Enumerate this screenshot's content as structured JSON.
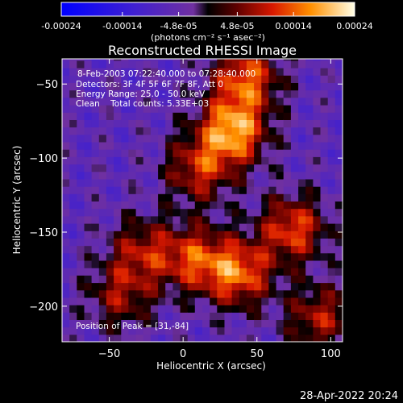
{
  "colorbar": {
    "tick_labels": [
      "-0.00024",
      "-0.00014",
      "-4.8e-05",
      "4.8e-05",
      "0.00014",
      "0.00024"
    ],
    "tick_values": [
      -0.00024,
      -0.00014,
      -4.8e-05,
      4.8e-05,
      0.00014,
      0.00024
    ],
    "range": [
      -0.00024,
      0.00024
    ],
    "units": "(photons cm⁻² s⁻¹ asec⁻²)"
  },
  "chart_data": {
    "type": "heatmap",
    "title": "Reconstructed RHESSI Image",
    "xlabel": "Heliocentric X (arcsec)",
    "ylabel": "Heliocentric Y (arcsec)",
    "xlim": [
      -82,
      108
    ],
    "ylim": [
      -224,
      -33
    ],
    "x_ticks": [
      -50,
      0,
      50,
      100
    ],
    "y_ticks": [
      -50,
      -100,
      -150,
      -200
    ],
    "x_tick_labels": [
      "−50",
      "0",
      "50",
      "100"
    ],
    "y_tick_labels": [
      "−50",
      "−100",
      "−150",
      "−200"
    ],
    "grid": false,
    "annotations": {
      "date": "8-Feb-2003 07:22:40.000 to 07:28:40.000",
      "detectors": "Detectors: 3F 4F 5F 6F 7F 8F, Att 0",
      "energy": "Energy Range: 25.0 - 50.0 keV",
      "clean": "Clean    Total counts: 5.33E+03",
      "peak": "Position of Peak = [31,-84]"
    },
    "peak_position": [
      31,
      -84
    ],
    "bright_regions": [
      {
        "x": 31,
        "y": -84,
        "value": 0.00024
      },
      {
        "x": 40,
        "y": -48,
        "value": 0.00019
      },
      {
        "x": 8,
        "y": -110,
        "value": 0.00015
      },
      {
        "x": 72,
        "y": -150,
        "value": 0.00018
      },
      {
        "x": 35,
        "y": -180,
        "value": 0.0002
      },
      {
        "x": 5,
        "y": -170,
        "value": 0.00016
      },
      {
        "x": -30,
        "y": -165,
        "value": 0.00013
      },
      {
        "x": -45,
        "y": -195,
        "value": 0.00012
      },
      {
        "x": 90,
        "y": -210,
        "value": 0.00014
      }
    ]
  },
  "footer": {
    "timestamp": "28-Apr-2022 20:24"
  }
}
